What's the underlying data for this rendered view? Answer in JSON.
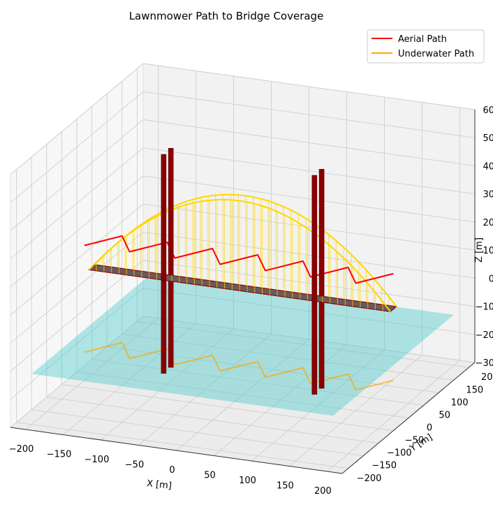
{
  "chart_data": {
    "type": "3d-line",
    "title": "Lawnmower Path to Bridge Coverage",
    "xlabel": "X [m]",
    "ylabel": "Y [m]",
    "zlabel": "Z [m]",
    "xlim": [
      -220,
      220
    ],
    "ylim": [
      -220,
      220
    ],
    "zlim": [
      -30,
      60
    ],
    "x_ticks": [
      "−200",
      "−150",
      "−100",
      "−50",
      "0",
      "50",
      "100",
      "150",
      "200"
    ],
    "y_ticks": [
      "−200",
      "−150",
      "−100",
      "−50",
      "0",
      "50",
      "100",
      "150",
      "200"
    ],
    "z_ticks": [
      "−30",
      "−20",
      "−10",
      "0",
      "10",
      "20",
      "30",
      "40",
      "50",
      "60"
    ],
    "grid": true,
    "legend_position": "top-right",
    "series": [
      {
        "name": "Aerial Path",
        "color": "#ff0000",
        "z": 18,
        "y_range": [
          -25,
          25
        ],
        "x_passes": [
          -200,
          -170,
          -170,
          -140,
          -140,
          -110,
          -110,
          -80,
          -80,
          -50,
          -50,
          -20,
          -20,
          10,
          10,
          40,
          40,
          70,
          70,
          100,
          100,
          130,
          130,
          160,
          160,
          190,
          190
        ]
      },
      {
        "name": "Underwater Path",
        "color": "#ffa500",
        "z": -20,
        "y_range": [
          -25,
          25
        ],
        "x_passes": [
          -200,
          -170,
          -170,
          -140,
          -140,
          -110,
          -110,
          -80,
          -80,
          -50,
          -50,
          -20,
          -20,
          10,
          10,
          40,
          40,
          70,
          70,
          100,
          100,
          130,
          130,
          160,
          160,
          190,
          190
        ]
      }
    ],
    "bridge": {
      "deck": {
        "x_range": [
          -200,
          200
        ],
        "y_range": [
          -10,
          10
        ],
        "z": 8,
        "color": "#8b0000"
      },
      "arch": {
        "x_range": [
          -200,
          200
        ],
        "y_offsets": [
          -10,
          10
        ],
        "z_base": 8,
        "z_peak": 40,
        "color": "#ffd700"
      },
      "towers": [
        {
          "x": -100,
          "y": -12
        },
        {
          "x": -100,
          "y": 12
        },
        {
          "x": 100,
          "y": -12
        },
        {
          "x": 100,
          "y": 12
        }
      ],
      "tower_z_range": [
        -25,
        53
      ],
      "tower_color": "#8b0000"
    },
    "water_surface": {
      "x_range": [
        -200,
        200
      ],
      "y_range": [
        -200,
        200
      ],
      "z": -12,
      "color": "#40c8c8"
    }
  }
}
